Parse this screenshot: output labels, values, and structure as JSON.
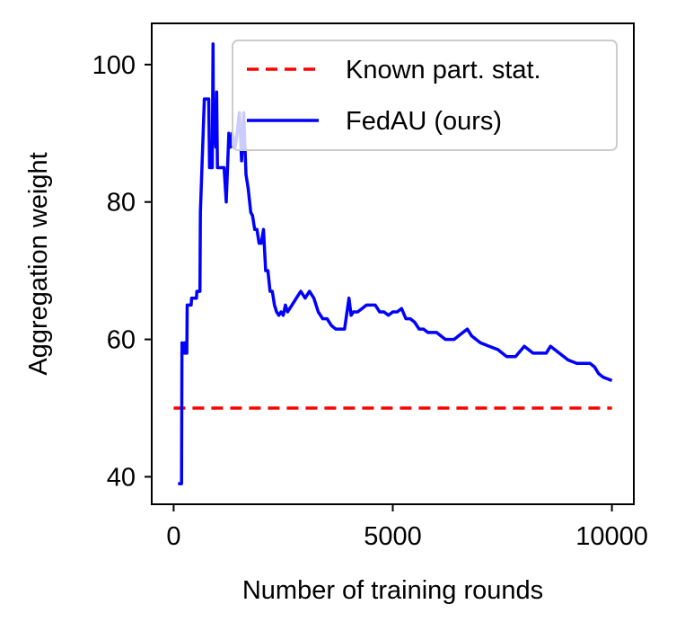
{
  "chart_data": {
    "type": "line",
    "xlabel": "Number of training rounds",
    "ylabel": "Aggregation weight",
    "xlim": [
      -500,
      10500
    ],
    "ylim": [
      36,
      106
    ],
    "xticks": [
      0,
      5000,
      10000
    ],
    "xtick_labels": [
      "0",
      "5000",
      "10000"
    ],
    "yticks": [
      40,
      60,
      80,
      100
    ],
    "ytick_labels": [
      "40",
      "60",
      "80",
      "100"
    ],
    "grid": false,
    "legend_position": "top-right",
    "series": [
      {
        "name": "Known part. stat.",
        "color": "#ff0000",
        "style": "dashed",
        "x": [
          0,
          10000
        ],
        "y": [
          50,
          50
        ]
      },
      {
        "name": "FedAU (ours)",
        "color": "#0000ff",
        "style": "solid",
        "x": [
          100,
          180,
          190,
          220,
          250,
          260,
          300,
          310,
          400,
          410,
          520,
          530,
          600,
          610,
          700,
          720,
          800,
          820,
          880,
          900,
          910,
          920,
          960,
          980,
          1000,
          1050,
          1100,
          1150,
          1200,
          1260,
          1300,
          1340,
          1400,
          1430,
          1500,
          1550,
          1600,
          1650,
          1700,
          1760,
          1800,
          1850,
          1900,
          1950,
          2000,
          2050,
          2100,
          2150,
          2200,
          2250,
          2300,
          2350,
          2400,
          2450,
          2500,
          2550,
          2600,
          2700,
          2800,
          2900,
          3000,
          3100,
          3200,
          3300,
          3400,
          3500,
          3600,
          3700,
          3800,
          3900,
          4000,
          4050,
          4100,
          4200,
          4300,
          4400,
          4500,
          4600,
          4700,
          4800,
          4900,
          5000,
          5100,
          5200,
          5300,
          5400,
          5500,
          5600,
          5700,
          5800,
          5900,
          6000,
          6200,
          6400,
          6500,
          6600,
          6700,
          6800,
          7000,
          7200,
          7400,
          7500,
          7600,
          7800,
          8000,
          8200,
          8400,
          8500,
          8600,
          8800,
          9000,
          9200,
          9400,
          9500,
          9600,
          9700,
          9800,
          10000
        ],
        "y": [
          39,
          39,
          59.5,
          58,
          59.5,
          58,
          58,
          65,
          65,
          66,
          66,
          67,
          67,
          78.5,
          95,
          95,
          95,
          85,
          85,
          103,
          89,
          93,
          88,
          96,
          85,
          85,
          85,
          85,
          80,
          90,
          88,
          90,
          88,
          89,
          93,
          86,
          93,
          84,
          82,
          78.5,
          78,
          76,
          76,
          74,
          74,
          76,
          70,
          70,
          67,
          67,
          65,
          64,
          63.5,
          64,
          63.5,
          65,
          64,
          65,
          66,
          67,
          66,
          67,
          66,
          64,
          63,
          63,
          62,
          61.5,
          61.5,
          61.5,
          66,
          63.5,
          64,
          64,
          64.5,
          65,
          65,
          65,
          64,
          64,
          63.5,
          64,
          64,
          64.5,
          63,
          63,
          62.5,
          61.5,
          61.5,
          61,
          61,
          61,
          60,
          60,
          60.5,
          61,
          61.5,
          60.5,
          59.5,
          59,
          58.5,
          58,
          57.5,
          57.5,
          59,
          58,
          58,
          58,
          59,
          58,
          57,
          56.5,
          56.5,
          56.5,
          56,
          55,
          54.5,
          54
        ]
      }
    ]
  }
}
